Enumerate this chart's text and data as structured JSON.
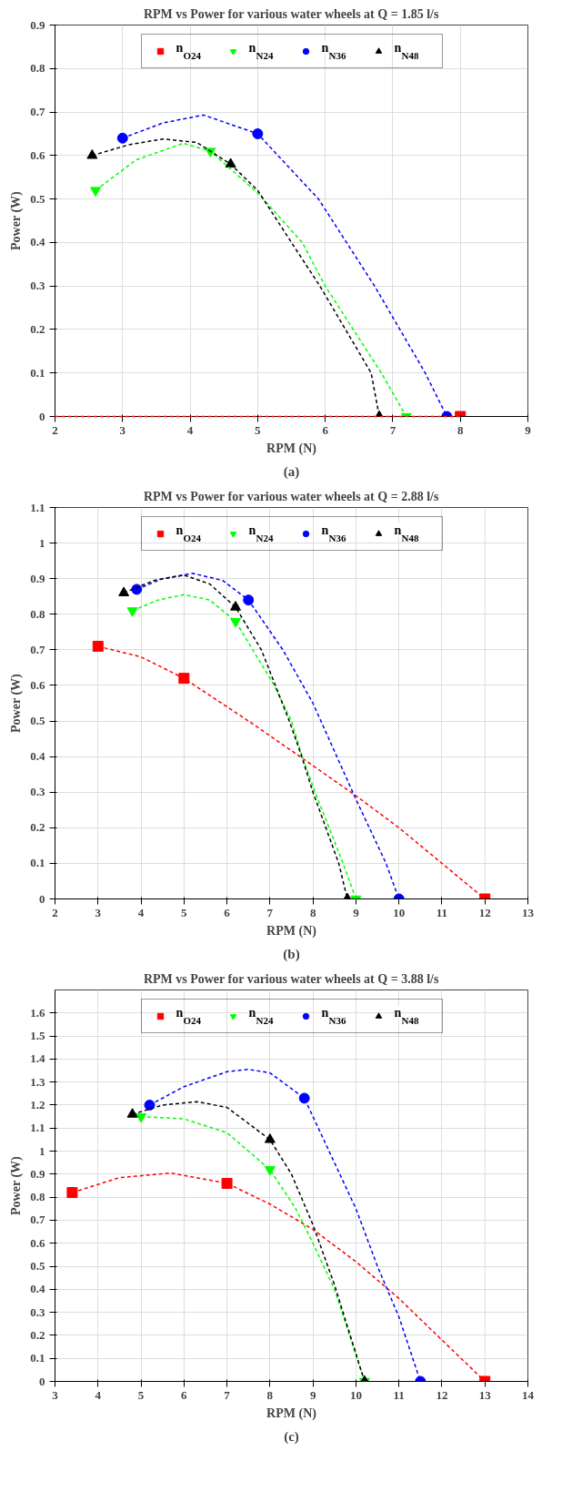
{
  "chart_data": [
    {
      "type": "scatter",
      "title": "RPM vs Power for various water wheels at Q = 1.85 l/s",
      "xlabel": "RPM (N)",
      "ylabel": "Power (W)",
      "annotations": [
        "(a)"
      ],
      "xlim": [
        2,
        9
      ],
      "ylim": [
        0,
        0.9
      ],
      "xticks": [
        2,
        3,
        4,
        5,
        6,
        7,
        8,
        9
      ],
      "yticks": [
        0,
        0.1,
        0.2,
        0.3,
        0.4,
        0.5,
        0.6,
        0.7,
        0.8,
        0.9
      ],
      "grid": true,
      "legend": "top",
      "series": [
        {
          "type": "line",
          "color": "#ff0000",
          "line_style": "dashed",
          "x": [
            2,
            8
          ],
          "values": [
            0,
            0
          ]
        },
        {
          "type": "line",
          "color": "#00ff00",
          "line_style": "dashed",
          "x": [
            2.6,
            3.2,
            3.9,
            4.3,
            5.0,
            5.66,
            6.0,
            6.83,
            7.2
          ],
          "values": [
            0.52,
            0.59,
            0.628,
            0.61,
            0.514,
            0.4,
            0.3,
            0.1,
            0
          ]
        },
        {
          "type": "line",
          "color": "#0000ff",
          "line_style": "dashed",
          "x": [
            3,
            3.6,
            4.2,
            5,
            5.9,
            6.73,
            7.48,
            7.8
          ],
          "values": [
            0.64,
            0.675,
            0.693,
            0.65,
            0.5,
            0.3,
            0.1,
            0
          ]
        },
        {
          "type": "line",
          "color": "#000000",
          "line_style": "dashed",
          "x": [
            2.55,
            3.1,
            3.6,
            4.1,
            4.6,
            5.0,
            5.5,
            5.92,
            6.68,
            6.8
          ],
          "values": [
            0.6,
            0.625,
            0.638,
            0.63,
            0.58,
            0.52,
            0.4,
            0.3,
            0.1,
            0
          ]
        },
        {
          "name": "n$_{O24}$",
          "color": "#ff0000",
          "marker": "square",
          "x": [
            8
          ],
          "values": [
            0
          ]
        },
        {
          "name": "n$_{N24}$",
          "color": "#00ff00",
          "marker": "triangle_down",
          "x": [
            2.6,
            4.3,
            7.2
          ],
          "values": [
            0.52,
            0.61,
            0
          ]
        },
        {
          "name": "n$_{N36}$",
          "color": "#0000ff",
          "marker": "circle",
          "x": [
            3,
            5,
            7.8
          ],
          "values": [
            0.64,
            0.65,
            0
          ]
        },
        {
          "name": "n$_{N48}$",
          "color": "#000000",
          "marker": "triangle",
          "x": [
            2.55,
            4.6,
            6.8
          ],
          "values": [
            0.6,
            0.58,
            0
          ]
        }
      ]
    },
    {
      "type": "scatter",
      "title": "RPM vs Power for various water wheels at Q = 2.88 l/s",
      "xlabel": "RPM (N)",
      "ylabel": "Power (W)",
      "annotations": [
        "(b)"
      ],
      "xlim": [
        2,
        13
      ],
      "ylim": [
        0,
        1.1
      ],
      "xticks": [
        2,
        3,
        4,
        5,
        6,
        7,
        8,
        9,
        10,
        11,
        12,
        13
      ],
      "yticks": [
        0,
        0.1,
        0.2,
        0.3,
        0.4,
        0.5,
        0.6,
        0.7,
        0.8,
        0.9,
        1,
        1.1
      ],
      "grid": true,
      "legend": "top",
      "series": [
        {
          "type": "line",
          "color": "#ff0000",
          "line_style": "dashed",
          "x": [
            3,
            4,
            5,
            6.5,
            7.7,
            9,
            10,
            11,
            12
          ],
          "values": [
            0.71,
            0.68,
            0.62,
            0.5,
            0.4,
            0.29,
            0.2,
            0.1,
            0
          ]
        },
        {
          "type": "line",
          "color": "#00ff00",
          "line_style": "dashed",
          "x": [
            3.8,
            4.4,
            5,
            5.6,
            6.2,
            7.1,
            7.5,
            7.75,
            8.05,
            8.7,
            9
          ],
          "values": [
            0.81,
            0.84,
            0.855,
            0.84,
            0.78,
            0.6,
            0.5,
            0.4,
            0.3,
            0.1,
            0
          ]
        },
        {
          "type": "line",
          "color": "#0000ff",
          "line_style": "dashed",
          "x": [
            3.9,
            4.5,
            5.2,
            5.9,
            6.5,
            7.3,
            8,
            9,
            9.7,
            10
          ],
          "values": [
            0.87,
            0.9,
            0.915,
            0.895,
            0.84,
            0.7,
            0.55,
            0.28,
            0.1,
            0
          ]
        },
        {
          "type": "line",
          "color": "#000000",
          "line_style": "dashed",
          "x": [
            3.6,
            4.3,
            5,
            5.6,
            6.2,
            6.8,
            7.45,
            7.74,
            8.0,
            8.6,
            8.8
          ],
          "values": [
            0.86,
            0.895,
            0.91,
            0.885,
            0.82,
            0.7,
            0.5,
            0.4,
            0.3,
            0.1,
            0
          ]
        },
        {
          "name": "n$_{O24}$",
          "color": "#ff0000",
          "marker": "square",
          "x": [
            3,
            5,
            12
          ],
          "values": [
            0.71,
            0.62,
            0
          ]
        },
        {
          "name": "n$_{N24}$",
          "color": "#00ff00",
          "marker": "triangle_down",
          "x": [
            3.8,
            6.2,
            9
          ],
          "values": [
            0.81,
            0.78,
            0
          ]
        },
        {
          "name": "n$_{N36}$",
          "color": "#0000ff",
          "marker": "circle",
          "x": [
            3.9,
            6.5,
            10
          ],
          "values": [
            0.87,
            0.84,
            0
          ]
        },
        {
          "name": "n$_{N48}$",
          "color": "#000000",
          "marker": "triangle",
          "x": [
            3.6,
            6.2,
            8.8
          ],
          "values": [
            0.86,
            0.82,
            0
          ]
        }
      ]
    },
    {
      "type": "scatter",
      "title": "RPM vs Power for various water wheels at Q = 3.88 l/s",
      "xlabel": "RPM (N)",
      "ylabel": "Power (W)",
      "annotations": [
        "(c)"
      ],
      "xlim": [
        3,
        14
      ],
      "ylim": [
        0,
        1.7
      ],
      "xticks": [
        3,
        4,
        5,
        6,
        7,
        8,
        9,
        10,
        11,
        12,
        13,
        14
      ],
      "yticks": [
        0,
        0.1,
        0.2,
        0.3,
        0.4,
        0.5,
        0.6,
        0.7,
        0.8,
        0.9,
        1,
        1.1,
        1.2,
        1.3,
        1.4,
        1.5,
        1.6
      ],
      "grid": true,
      "legend": "top",
      "series": [
        {
          "type": "line",
          "color": "#ff0000",
          "line_style": "dashed",
          "x": [
            3.4,
            4.5,
            5.7,
            7,
            8,
            9,
            10,
            11,
            12,
            13
          ],
          "values": [
            0.82,
            0.885,
            0.905,
            0.86,
            0.77,
            0.66,
            0.52,
            0.36,
            0.18,
            0
          ]
        },
        {
          "type": "line",
          "color": "#00ff00",
          "line_style": "dashed",
          "x": [
            5,
            6,
            7,
            8,
            8.6,
            9,
            9.5,
            10.2
          ],
          "values": [
            1.15,
            1.14,
            1.08,
            0.92,
            0.75,
            0.6,
            0.4,
            0
          ]
        },
        {
          "type": "line",
          "color": "#0000ff",
          "line_style": "dashed",
          "x": [
            5.2,
            6,
            7,
            7.5,
            8,
            8.8,
            9.5,
            10,
            10.5,
            11,
            11.5
          ],
          "values": [
            1.2,
            1.28,
            1.345,
            1.355,
            1.34,
            1.23,
            0.95,
            0.75,
            0.5,
            0.28,
            0
          ]
        },
        {
          "type": "line",
          "color": "#000000",
          "line_style": "dashed",
          "x": [
            4.8,
            5.5,
            6.3,
            7,
            8,
            8.5,
            9,
            9.5,
            10.2
          ],
          "values": [
            1.16,
            1.2,
            1.215,
            1.19,
            1.05,
            0.9,
            0.68,
            0.42,
            0
          ]
        },
        {
          "name": "n$_{O24}$",
          "color": "#ff0000",
          "marker": "square",
          "x": [
            3.4,
            7,
            13
          ],
          "values": [
            0.82,
            0.86,
            0
          ]
        },
        {
          "name": "n$_{N24}$",
          "color": "#00ff00",
          "marker": "triangle_down",
          "x": [
            5,
            8,
            10.2
          ],
          "values": [
            1.15,
            0.92,
            0
          ]
        },
        {
          "name": "n$_{N36}$",
          "color": "#0000ff",
          "marker": "circle",
          "x": [
            5.2,
            8.8,
            11.5
          ],
          "values": [
            1.2,
            1.23,
            0
          ]
        },
        {
          "name": "n$_{N48}$",
          "color": "#000000",
          "marker": "triangle",
          "x": [
            4.8,
            8,
            10.2
          ],
          "values": [
            1.16,
            1.05,
            0
          ]
        }
      ]
    }
  ]
}
